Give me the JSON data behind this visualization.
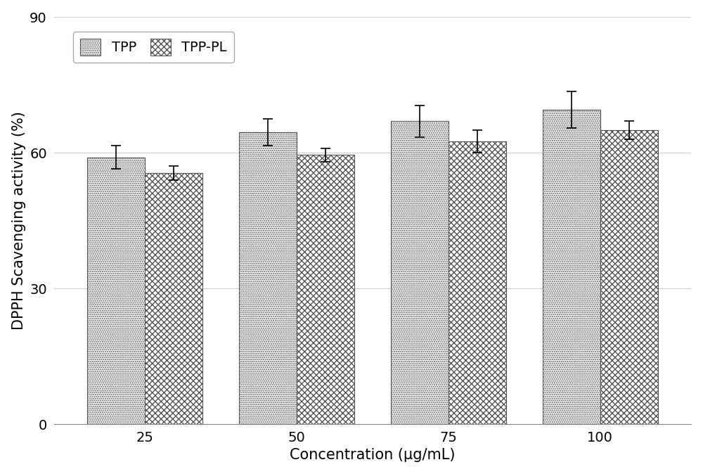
{
  "categories": [
    25,
    50,
    75,
    100
  ],
  "tpp_values": [
    59.0,
    64.5,
    67.0,
    69.5
  ],
  "tpp_errors": [
    2.5,
    3.0,
    3.5,
    4.0
  ],
  "tpp_pl_values": [
    55.5,
    59.5,
    62.5,
    65.0
  ],
  "tpp_pl_errors": [
    1.5,
    1.5,
    2.5,
    2.0
  ],
  "xlabel": "Concentration (μg/mL)",
  "ylabel": "DPPH Scavenging activity (%)",
  "ylim": [
    0,
    90
  ],
  "yticks": [
    0,
    30,
    60,
    90
  ],
  "legend_labels": [
    "TPP",
    "TPP-PL"
  ],
  "bar_width": 0.38,
  "background_color": "#ffffff",
  "grid_color": "#d0d0d0",
  "figsize": [
    10.0,
    6.74
  ],
  "dpi": 100,
  "tick_fontsize": 14,
  "label_fontsize": 15,
  "legend_fontsize": 14
}
